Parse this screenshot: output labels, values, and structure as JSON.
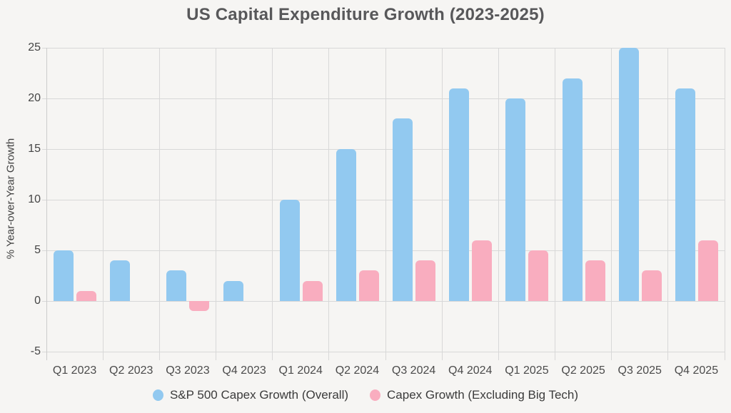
{
  "chart_data": {
    "type": "bar",
    "title": "US Capital Expenditure Growth (2023-2025)",
    "xlabel": "",
    "ylabel": "% Year-over-Year Growth",
    "categories": [
      "Q1 2023",
      "Q2 2023",
      "Q3 2023",
      "Q4 2023",
      "Q1 2024",
      "Q2 2024",
      "Q3 2024",
      "Q4 2024",
      "Q1 2025",
      "Q2 2025",
      "Q3 2025",
      "Q4 2025"
    ],
    "series": [
      {
        "name": "S&P 500 Capex Growth (Overall)",
        "color": "#92C9F0",
        "values": [
          5,
          4,
          3,
          2,
          10,
          15,
          18,
          21,
          20,
          22,
          25,
          21
        ]
      },
      {
        "name": "Capex Growth (Excluding Big Tech)",
        "color": "#F9ADBF",
        "values": [
          1,
          0,
          -1,
          0,
          2,
          3,
          4,
          6,
          5,
          4,
          3,
          6
        ]
      }
    ],
    "y_ticks": [
      25,
      20,
      15,
      10,
      5,
      0,
      -5
    ],
    "ylim": [
      -5,
      25
    ],
    "grid": true,
    "legend_position": "bottom",
    "colors": {
      "background": "#F6F5F3",
      "gridline": "#D8D8D8",
      "title_text": "#58585A",
      "axis_text": "#454545"
    }
  }
}
